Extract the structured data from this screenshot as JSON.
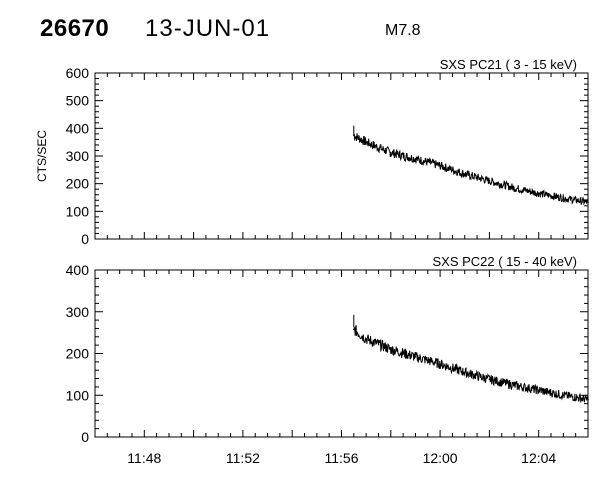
{
  "header": {
    "event_id": "26670",
    "date": "13-JUN-01",
    "flare_class": "M7.8"
  },
  "chart_data": [
    {
      "type": "line",
      "title": "SXS PC21  ( 3 - 15 keV)",
      "ylabel": "CTS/SEC",
      "xlabel": "",
      "ylim": [
        0,
        600
      ],
      "yticks": [
        0,
        100,
        200,
        300,
        400,
        500,
        600
      ],
      "x_unit": "minutes",
      "xlim": [
        "11:46",
        "12:06"
      ],
      "grid": false,
      "series": [
        {
          "x": [
            "11:56.5",
            "11:57",
            "11:58",
            "11:59",
            "12:00",
            "12:01",
            "12:02",
            "12:03",
            "12:04",
            "12:05",
            "12:06"
          ],
          "y": [
            375,
            350,
            312,
            290,
            265,
            235,
            210,
            185,
            165,
            148,
            133
          ]
        }
      ]
    },
    {
      "type": "line",
      "title": "SXS PC22  ( 15 - 40 keV)",
      "ylabel": "",
      "xlabel": "",
      "ylim": [
        0,
        400
      ],
      "yticks": [
        0,
        100,
        200,
        300,
        400
      ],
      "x_unit": "minutes",
      "xlim": [
        "11:46",
        "12:06"
      ],
      "xticks": [
        "11:48",
        "11:52",
        "11:56",
        "12:00",
        "12:04"
      ],
      "grid": false,
      "series": [
        {
          "x": [
            "11:56.5",
            "11:57",
            "11:58",
            "11:59",
            "12:00",
            "12:01",
            "12:02",
            "12:03",
            "12:04",
            "12:05",
            "12:06"
          ],
          "y": [
            258,
            235,
            210,
            192,
            175,
            155,
            138,
            124,
            112,
            100,
            90
          ]
        }
      ]
    }
  ]
}
